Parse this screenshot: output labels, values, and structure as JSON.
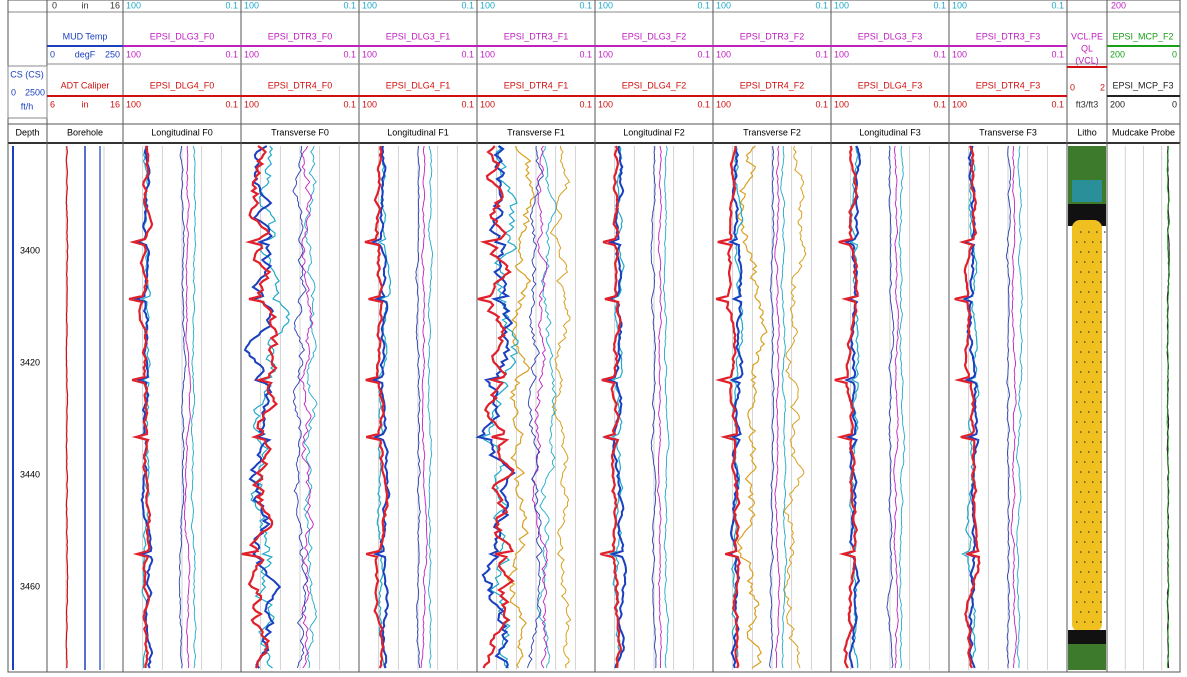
{
  "header": {
    "depth_column": {
      "name": "CS (CS)",
      "min": "0",
      "max": "2500",
      "unit": "ft/h"
    },
    "borehole": {
      "top_row": [
        "0",
        "in",
        "16"
      ],
      "curve_1": {
        "name": "MUD Temp",
        "min": "0",
        "unit": "degF",
        "max": "250"
      },
      "curve_2": {
        "name": "ADT Caliper",
        "min": "6",
        "unit": "in",
        "max": "16"
      }
    },
    "tracks": [
      {
        "top_row": [
          "100",
          "0.1"
        ],
        "curve_1": {
          "name": "EPSI_DLG3_F0",
          "min": "100",
          "max": "0.1"
        },
        "curve_2": {
          "name": "EPSI_DLG4_F0",
          "min": "100",
          "max": "0.1"
        }
      },
      {
        "top_row": [
          "100",
          "0.1"
        ],
        "curve_1": {
          "name": "EPSI_DTR3_F0",
          "min": "100",
          "max": "0.1"
        },
        "curve_2": {
          "name": "EPSI_DTR4_F0",
          "min": "100",
          "max": "0.1"
        }
      },
      {
        "top_row": [
          "100",
          "0.1"
        ],
        "curve_1": {
          "name": "EPSI_DLG3_F1",
          "min": "100",
          "max": "0.1"
        },
        "curve_2": {
          "name": "EPSI_DLG4_F1",
          "min": "100",
          "max": "0.1"
        }
      },
      {
        "top_row": [
          "100",
          "0.1"
        ],
        "curve_1": {
          "name": "EPSI_DTR3_F1",
          "min": "100",
          "max": "0.1"
        },
        "curve_2": {
          "name": "EPSI_DTR4_F1",
          "min": "100",
          "max": "0.1"
        }
      },
      {
        "top_row": [
          "100",
          "0.1"
        ],
        "curve_1": {
          "name": "EPSI_DLG3_F2",
          "min": "100",
          "max": "0.1"
        },
        "curve_2": {
          "name": "EPSI_DLG4_F2",
          "min": "100",
          "max": "0.1"
        }
      },
      {
        "top_row": [
          "100",
          "0.1"
        ],
        "curve_1": {
          "name": "EPSI_DTR3_F2",
          "min": "100",
          "max": "0.1"
        },
        "curve_2": {
          "name": "EPSI_DTR4_F2",
          "min": "100",
          "max": "0.1"
        }
      },
      {
        "top_row": [
          "100",
          "0.1"
        ],
        "curve_1": {
          "name": "EPSI_DLG3_F3",
          "min": "100",
          "max": "0.1"
        },
        "curve_2": {
          "name": "EPSI_DLG4_F3",
          "min": "100",
          "max": "0.1"
        }
      },
      {
        "top_row": [
          "100",
          "0.1"
        ],
        "curve_1": {
          "name": "EPSI_DTR3_F3",
          "min": "100",
          "max": "0.1"
        },
        "curve_2": {
          "name": "EPSI_DTR4_F3",
          "min": "100",
          "max": "0.1"
        }
      }
    ],
    "litho": {
      "name": [
        "VCL.PE",
        "QL",
        "(VCL)"
      ],
      "min": "0",
      "max": "2",
      "unit": "ft3/ft3"
    },
    "mudcake": {
      "top_row": "200",
      "curve_1": {
        "name": "EPSI_MCP_F2",
        "min": "200",
        "max": "0"
      },
      "curve_2": {
        "name": "EPSI_MCP_F3",
        "min": "200",
        "max": "0"
      }
    }
  },
  "track_titles": [
    "Depth",
    "Borehole",
    "Longitudinal F0",
    "Transverse F0",
    "Longitudinal F1",
    "Transverse F1",
    "Longitudinal F2",
    "Transverse F2",
    "Longitudinal F3",
    "Transverse F3",
    "Litho",
    "Mudcake Probe"
  ],
  "depth_labels": [
    "3400",
    "3420",
    "3440",
    "3460"
  ]
}
